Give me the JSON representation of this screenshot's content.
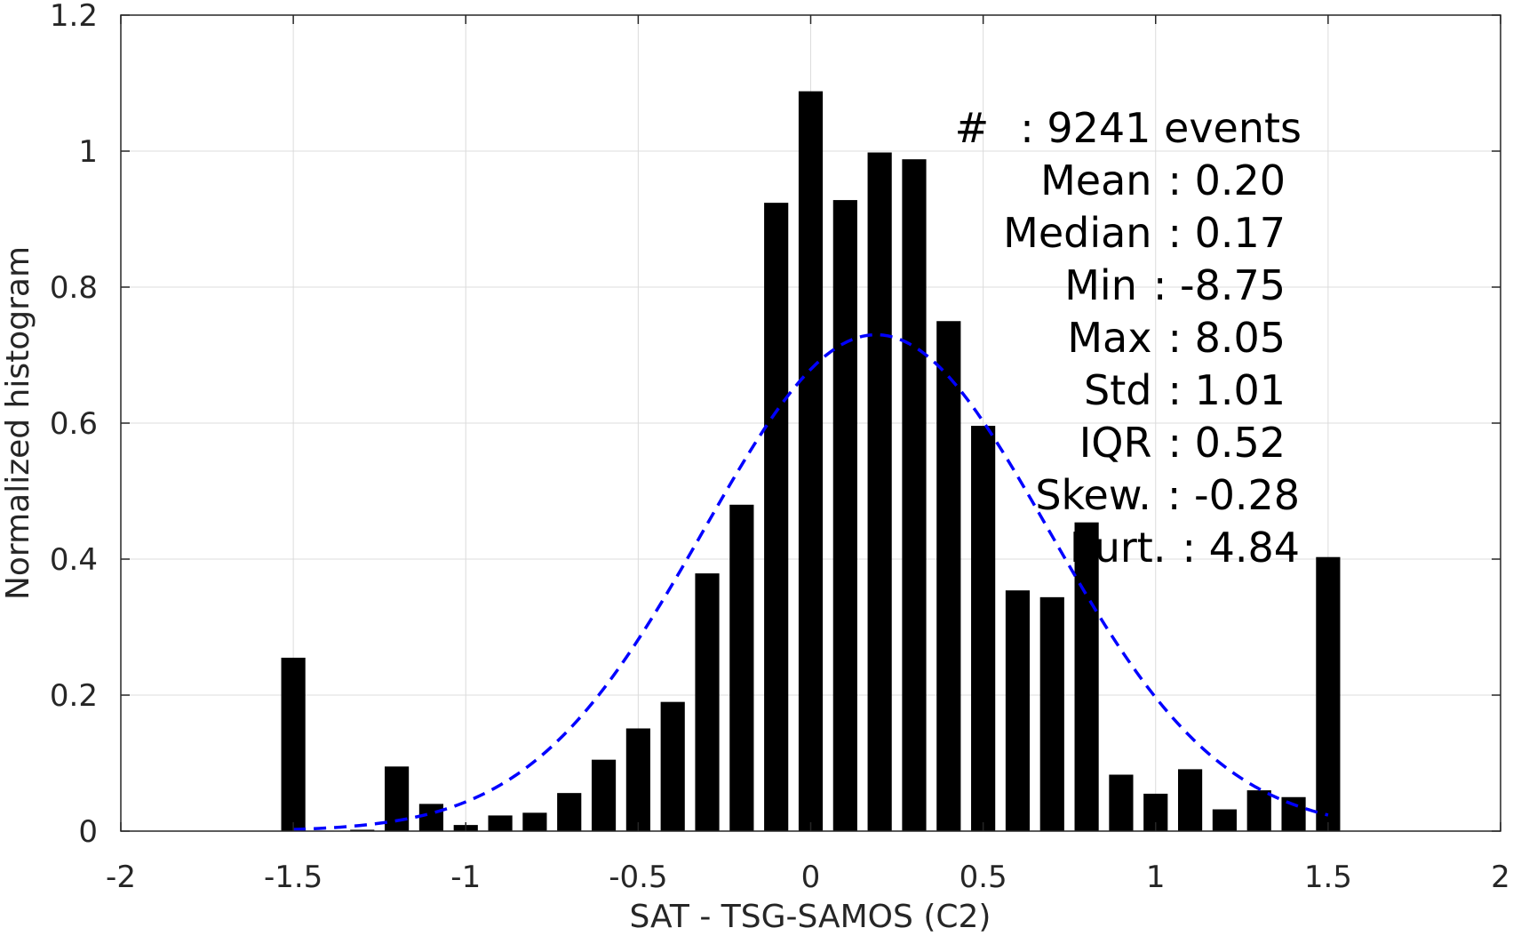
{
  "chart_data": {
    "type": "bar",
    "xlabel": "SAT - TSG-SAMOS (C2)",
    "ylabel": "Normalized histogram",
    "xlim": [
      -2,
      2
    ],
    "ylim": [
      0,
      1.2
    ],
    "grid": true,
    "xticks": [
      -2,
      -1.5,
      -1,
      -0.5,
      0,
      0.5,
      1,
      1.5,
      2
    ],
    "xtick_labels": [
      "-2",
      "-1.5",
      "-1",
      "-0.5",
      "0",
      "0.5",
      "1",
      "1.5",
      "2"
    ],
    "yticks": [
      0,
      0.2,
      0.4,
      0.6,
      0.8,
      1,
      1.2
    ],
    "ytick_labels": [
      "0",
      "0.2",
      "0.4",
      "0.6",
      "0.8",
      "1",
      "1.2"
    ],
    "bar_width": 0.07,
    "bar_color": "#000000",
    "x": [
      -1.5,
      -1.4,
      -1.3,
      -1.2,
      -1.1,
      -1.0,
      -0.9,
      -0.8,
      -0.7,
      -0.6,
      -0.5,
      -0.4,
      -0.3,
      -0.2,
      -0.1,
      0.0,
      0.1,
      0.2,
      0.3,
      0.4,
      0.5,
      0.6,
      0.7,
      0.8,
      0.9,
      1.0,
      1.1,
      1.2,
      1.3,
      1.4,
      1.5
    ],
    "values": [
      0.255,
      0.0,
      0.002,
      0.095,
      0.04,
      0.009,
      0.023,
      0.027,
      0.056,
      0.105,
      0.151,
      0.19,
      0.379,
      0.48,
      0.924,
      1.088,
      0.928,
      0.998,
      0.988,
      0.75,
      0.596,
      0.354,
      0.344,
      0.454,
      0.083,
      0.055,
      0.091,
      0.032,
      0.06,
      0.05,
      0.403
    ],
    "fit_curve": {
      "type": "gaussian",
      "color": "#0000ff",
      "style": "dashed",
      "peak": 0.73,
      "mean": 0.19,
      "sd": 0.5,
      "x_range": [
        -1.5,
        1.5
      ]
    },
    "stats": [
      {
        "label": "#",
        "sep": ": 9241 events"
      },
      {
        "label": "Mean",
        "sep": ": 0.20"
      },
      {
        "label": "Median",
        "sep": ": 0.17"
      },
      {
        "label": "Min",
        "sep": ": -8.75"
      },
      {
        "label": "Max",
        "sep": ": 8.05"
      },
      {
        "label": "Std",
        "sep": ": 1.01"
      },
      {
        "label": "IQR",
        "sep": ": 0.52"
      },
      {
        "label": "Skew.",
        "sep": ": -0.28"
      },
      {
        "label": "Kurt.",
        "sep": ": 4.84"
      }
    ]
  }
}
